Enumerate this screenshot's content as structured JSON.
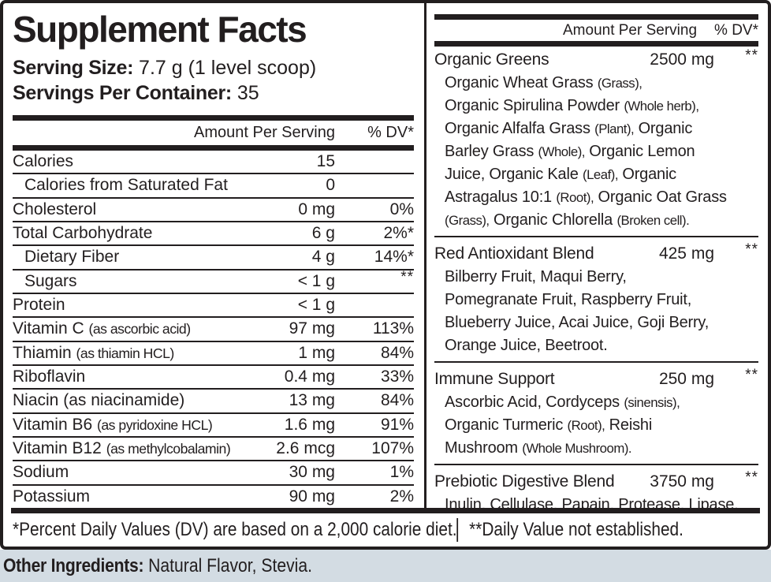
{
  "colors": {
    "text": "#221e1f",
    "bottom_strip_bg": "#d3dce3"
  },
  "header": {
    "title": "Supplement Facts",
    "serving_size_label": "Serving Size:",
    "serving_size_value": " 7.7 g (1 level scoop)",
    "servings_label": "Servings Per Container:",
    "servings_value": " 35"
  },
  "left_table": {
    "col_amount": "Amount Per Serving",
    "col_dv": "% DV*",
    "rows": [
      {
        "name": "Calories",
        "paren": "",
        "paren_cond": false,
        "amount": "15",
        "dv": "",
        "indent": false,
        "dv_raised": false
      },
      {
        "name": "Calories from Saturated Fat",
        "paren": "",
        "paren_cond": false,
        "amount": "0",
        "dv": "",
        "indent": true,
        "dv_raised": false
      },
      {
        "name": "Cholesterol",
        "paren": "",
        "paren_cond": false,
        "amount": "0 mg",
        "dv": "0%",
        "indent": false,
        "dv_raised": false
      },
      {
        "name": "Total Carbohydrate",
        "paren": "",
        "paren_cond": false,
        "amount": "6 g",
        "dv": "2%*",
        "indent": false,
        "dv_raised": false
      },
      {
        "name": "Dietary Fiber",
        "paren": "",
        "paren_cond": false,
        "amount": "4 g",
        "dv": "14%*",
        "indent": true,
        "dv_raised": false
      },
      {
        "name": "Sugars",
        "paren": "",
        "paren_cond": false,
        "amount": "< 1 g",
        "dv": "**",
        "indent": true,
        "dv_raised": true
      },
      {
        "name": "Protein",
        "paren": "",
        "paren_cond": false,
        "amount": "< 1 g",
        "dv": "",
        "indent": false,
        "dv_raised": false
      },
      {
        "name": "Vitamin C",
        "paren": "(as ascorbic acid)",
        "paren_cond": true,
        "amount": "97 mg",
        "dv": "113%",
        "indent": false,
        "dv_raised": false
      },
      {
        "name": "Thiamin",
        "paren": "(as thiamin HCL)",
        "paren_cond": true,
        "amount": "1 mg",
        "dv": "84%",
        "indent": false,
        "dv_raised": false
      },
      {
        "name": "Riboflavin",
        "paren": "",
        "paren_cond": false,
        "amount": "0.4 mg",
        "dv": "33%",
        "indent": false,
        "dv_raised": false
      },
      {
        "name": "Niacin",
        "paren": "(as niacinamide)",
        "paren_cond": false,
        "amount": "13 mg",
        "dv": "84%",
        "indent": false,
        "dv_raised": false
      },
      {
        "name": "Vitamin B6",
        "paren": "(as pyridoxine HCL)",
        "paren_cond": true,
        "amount": "1.6 mg",
        "dv": "91%",
        "indent": false,
        "dv_raised": false
      },
      {
        "name": "Vitamin B12",
        "paren": "(as methylcobalamin)",
        "paren_cond": true,
        "amount": "2.6 mcg",
        "dv": "107%",
        "indent": false,
        "dv_raised": false
      },
      {
        "name": "Sodium",
        "paren": "",
        "paren_cond": false,
        "amount": "30 mg",
        "dv": "1%",
        "indent": false,
        "dv_raised": false
      },
      {
        "name": "Potassium",
        "paren": "",
        "paren_cond": false,
        "amount": "90 mg",
        "dv": "2%",
        "indent": false,
        "dv_raised": false
      }
    ]
  },
  "right_table": {
    "col_amount": "Amount Per Serving",
    "col_dv": "% DV*",
    "blends": [
      {
        "name": "Organic Greens",
        "amount": "2500 mg",
        "dv": "**",
        "lines": [
          [
            {
              "t": "Organic Wheat Grass ",
              "c": false
            },
            {
              "t": "(Grass),",
              "c": true
            }
          ],
          [
            {
              "t": "Organic Spirulina Powder ",
              "c": false
            },
            {
              "t": "(Whole herb),",
              "c": true
            }
          ],
          [
            {
              "t": "Organic Alfalfa Grass ",
              "c": false
            },
            {
              "t": "(Plant),",
              "c": true
            },
            {
              "t": " Organic",
              "c": false
            }
          ],
          [
            {
              "t": "Barley Grass ",
              "c": false
            },
            {
              "t": "(Whole),",
              "c": true
            },
            {
              "t": " Organic Lemon",
              "c": false
            }
          ],
          [
            {
              "t": "Juice, Organic Kale ",
              "c": false
            },
            {
              "t": "(Leaf),",
              "c": true
            },
            {
              "t": " Organic",
              "c": false
            }
          ],
          [
            {
              "t": "Astragalus 10:1 ",
              "c": false
            },
            {
              "t": "(Root),",
              "c": true
            },
            {
              "t": " Organic Oat Grass",
              "c": false
            }
          ],
          [
            {
              "t": "(Grass),",
              "c": true
            },
            {
              "t": " Organic Chlorella ",
              "c": false
            },
            {
              "t": "(Broken cell).",
              "c": true
            }
          ]
        ]
      },
      {
        "name": "Red Antioxidant Blend",
        "amount": "425 mg",
        "dv": "**",
        "lines": [
          [
            {
              "t": "Bilberry Fruit, Maqui Berry,",
              "c": false
            }
          ],
          [
            {
              "t": "Pomegranate Fruit, Raspberry Fruit,",
              "c": false
            }
          ],
          [
            {
              "t": "Blueberry Juice, Acai Juice, Goji Berry,",
              "c": false
            }
          ],
          [
            {
              "t": "Orange Juice, Beetroot.",
              "c": false
            }
          ]
        ]
      },
      {
        "name": "Immune Support",
        "amount": "250 mg",
        "dv": "**",
        "lines": [
          [
            {
              "t": "Ascorbic Acid, Cordyceps ",
              "c": false
            },
            {
              "t": "(sinensis),",
              "c": true
            }
          ],
          [
            {
              "t": "Organic Turmeric ",
              "c": false
            },
            {
              "t": "(Root),",
              "c": true
            },
            {
              "t": " Reishi",
              "c": false
            }
          ],
          [
            {
              "t": "Mushroom ",
              "c": false
            },
            {
              "t": "(Whole Mushroom).",
              "c": true
            }
          ]
        ]
      },
      {
        "name": "Prebiotic Digestive Blend",
        "amount": "3750 mg",
        "dv": "**",
        "lines": [
          [
            {
              "t": "Inulin, Cellulase, Papain, Protease, Lipase.",
              "c": false
            }
          ]
        ]
      }
    ]
  },
  "footnotes": {
    "dv_note": "*Percent Daily Values (DV) are based on a 2,000 calorie diet.",
    "not_established": "**Daily Value not established."
  },
  "other_ingredients": {
    "label": "Other Ingredients:",
    "value": " Natural Flavor, Stevia."
  }
}
